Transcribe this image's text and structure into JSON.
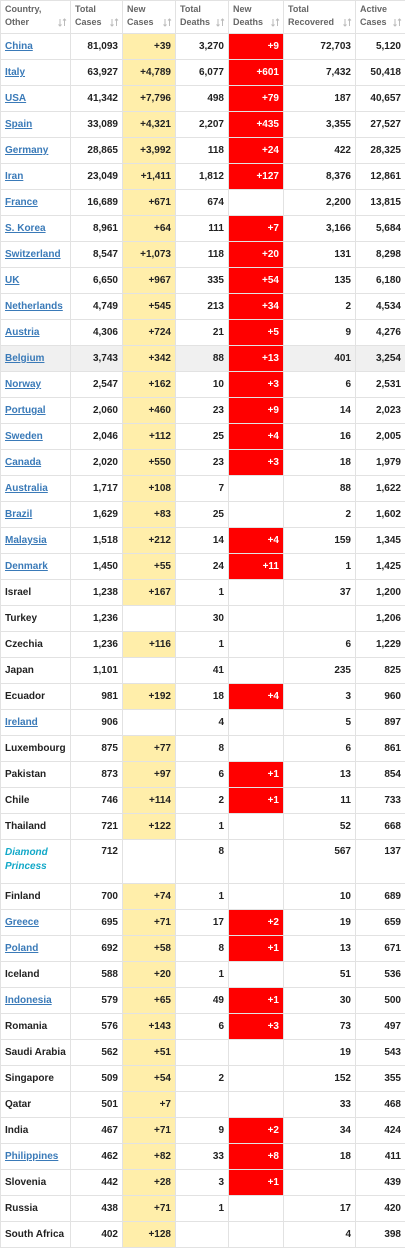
{
  "table": {
    "columns": [
      "Country,\nOther",
      "Total\nCases",
      "New\nCases",
      "Total\nDeaths",
      "New\nDeaths",
      "Total\nRecovered",
      "Active\nCases"
    ],
    "rows": [
      {
        "link": true,
        "cells": [
          "China",
          "81,093",
          "+39",
          "3,270",
          "+9",
          "72,703",
          "5,120"
        ]
      },
      {
        "link": true,
        "cells": [
          "Italy",
          "63,927",
          "+4,789",
          "6,077",
          "+601",
          "7,432",
          "50,418"
        ]
      },
      {
        "link": true,
        "cells": [
          "USA",
          "41,342",
          "+7,796",
          "498",
          "+79",
          "187",
          "40,657"
        ]
      },
      {
        "link": true,
        "cells": [
          "Spain",
          "33,089",
          "+4,321",
          "2,207",
          "+435",
          "3,355",
          "27,527"
        ]
      },
      {
        "link": true,
        "cells": [
          "Germany",
          "28,865",
          "+3,992",
          "118",
          "+24",
          "422",
          "28,325"
        ]
      },
      {
        "link": true,
        "cells": [
          "Iran",
          "23,049",
          "+1,411",
          "1,812",
          "+127",
          "8,376",
          "12,861"
        ]
      },
      {
        "link": true,
        "cells": [
          "France",
          "16,689",
          "+671",
          "674",
          null,
          "2,200",
          "13,815"
        ]
      },
      {
        "link": true,
        "cells": [
          "S. Korea",
          "8,961",
          "+64",
          "111",
          "+7",
          "3,166",
          "5,684"
        ]
      },
      {
        "link": true,
        "cells": [
          "Switzerland",
          "8,547",
          "+1,073",
          "118",
          "+20",
          "131",
          "8,298"
        ]
      },
      {
        "link": true,
        "cells": [
          "UK",
          "6,650",
          "+967",
          "335",
          "+54",
          "135",
          "6,180"
        ]
      },
      {
        "link": true,
        "cells": [
          "Netherlands",
          "4,749",
          "+545",
          "213",
          "+34",
          "2",
          "4,534"
        ]
      },
      {
        "link": true,
        "cells": [
          "Austria",
          "4,306",
          "+724",
          "21",
          "+5",
          "9",
          "4,276"
        ]
      },
      {
        "link": true,
        "highlight": true,
        "cells": [
          "Belgium",
          "3,743",
          "+342",
          "88",
          "+13",
          "401",
          "3,254"
        ]
      },
      {
        "link": true,
        "cells": [
          "Norway",
          "2,547",
          "+162",
          "10",
          "+3",
          "6",
          "2,531"
        ]
      },
      {
        "link": true,
        "cells": [
          "Portugal",
          "2,060",
          "+460",
          "23",
          "+9",
          "14",
          "2,023"
        ]
      },
      {
        "link": true,
        "cells": [
          "Sweden",
          "2,046",
          "+112",
          "25",
          "+4",
          "16",
          "2,005"
        ]
      },
      {
        "link": true,
        "cells": [
          "Canada",
          "2,020",
          "+550",
          "23",
          "+3",
          "18",
          "1,979"
        ]
      },
      {
        "link": true,
        "cells": [
          "Australia",
          "1,717",
          "+108",
          "7",
          null,
          "88",
          "1,622"
        ]
      },
      {
        "link": true,
        "cells": [
          "Brazil",
          "1,629",
          "+83",
          "25",
          null,
          "2",
          "1,602"
        ]
      },
      {
        "link": true,
        "cells": [
          "Malaysia",
          "1,518",
          "+212",
          "14",
          "+4",
          "159",
          "1,345"
        ]
      },
      {
        "link": true,
        "cells": [
          "Denmark",
          "1,450",
          "+55",
          "24",
          "+11",
          "1",
          "1,425"
        ]
      },
      {
        "link": false,
        "cells": [
          "Israel",
          "1,238",
          "+167",
          "1",
          null,
          "37",
          "1,200"
        ]
      },
      {
        "link": false,
        "cells": [
          "Turkey",
          "1,236",
          null,
          "30",
          null,
          null,
          "1,206"
        ]
      },
      {
        "link": false,
        "cells": [
          "Czechia",
          "1,236",
          "+116",
          "1",
          null,
          "6",
          "1,229"
        ]
      },
      {
        "link": false,
        "cells": [
          "Japan",
          "1,101",
          null,
          "41",
          null,
          "235",
          "825"
        ]
      },
      {
        "link": false,
        "cells": [
          "Ecuador",
          "981",
          "+192",
          "18",
          "+4",
          "3",
          "960"
        ]
      },
      {
        "link": true,
        "cells": [
          "Ireland",
          "906",
          null,
          "4",
          null,
          "5",
          "897"
        ]
      },
      {
        "link": false,
        "cells": [
          "Luxembourg",
          "875",
          "+77",
          "8",
          null,
          "6",
          "861"
        ]
      },
      {
        "link": false,
        "cells": [
          "Pakistan",
          "873",
          "+97",
          "6",
          "+1",
          "13",
          "854"
        ]
      },
      {
        "link": false,
        "cells": [
          "Chile",
          "746",
          "+114",
          "2",
          "+1",
          "11",
          "733"
        ]
      },
      {
        "link": false,
        "cells": [
          "Thailand",
          "721",
          "+122",
          "1",
          null,
          "52",
          "668"
        ]
      },
      {
        "link": false,
        "special": true,
        "cells": [
          "Diamond Princess",
          "712",
          null,
          "8",
          null,
          "567",
          "137"
        ]
      },
      {
        "link": false,
        "cells": [
          "Finland",
          "700",
          "+74",
          "1",
          null,
          "10",
          "689"
        ]
      },
      {
        "link": true,
        "cells": [
          "Greece",
          "695",
          "+71",
          "17",
          "+2",
          "19",
          "659"
        ]
      },
      {
        "link": true,
        "cells": [
          "Poland",
          "692",
          "+58",
          "8",
          "+1",
          "13",
          "671"
        ]
      },
      {
        "link": false,
        "cells": [
          "Iceland",
          "588",
          "+20",
          "1",
          null,
          "51",
          "536"
        ]
      },
      {
        "link": true,
        "cells": [
          "Indonesia",
          "579",
          "+65",
          "49",
          "+1",
          "30",
          "500"
        ]
      },
      {
        "link": false,
        "cells": [
          "Romania",
          "576",
          "+143",
          "6",
          "+3",
          "73",
          "497"
        ]
      },
      {
        "link": false,
        "cells": [
          "Saudi Arabia",
          "562",
          "+51",
          null,
          null,
          "19",
          "543"
        ]
      },
      {
        "link": false,
        "cells": [
          "Singapore",
          "509",
          "+54",
          "2",
          null,
          "152",
          "355"
        ]
      },
      {
        "link": false,
        "cells": [
          "Qatar",
          "501",
          "+7",
          null,
          null,
          "33",
          "468"
        ]
      },
      {
        "link": false,
        "cells": [
          "India",
          "467",
          "+71",
          "9",
          "+2",
          "34",
          "424"
        ]
      },
      {
        "link": true,
        "cells": [
          "Philippines",
          "462",
          "+82",
          "33",
          "+8",
          "18",
          "411"
        ]
      },
      {
        "link": false,
        "cells": [
          "Slovenia",
          "442",
          "+28",
          "3",
          "+1",
          null,
          "439"
        ]
      },
      {
        "link": false,
        "cells": [
          "Russia",
          "438",
          "+71",
          "1",
          null,
          "17",
          "420"
        ]
      },
      {
        "link": false,
        "cells": [
          "South Africa",
          "402",
          "+128",
          null,
          null,
          "4",
          "398"
        ]
      }
    ]
  }
}
